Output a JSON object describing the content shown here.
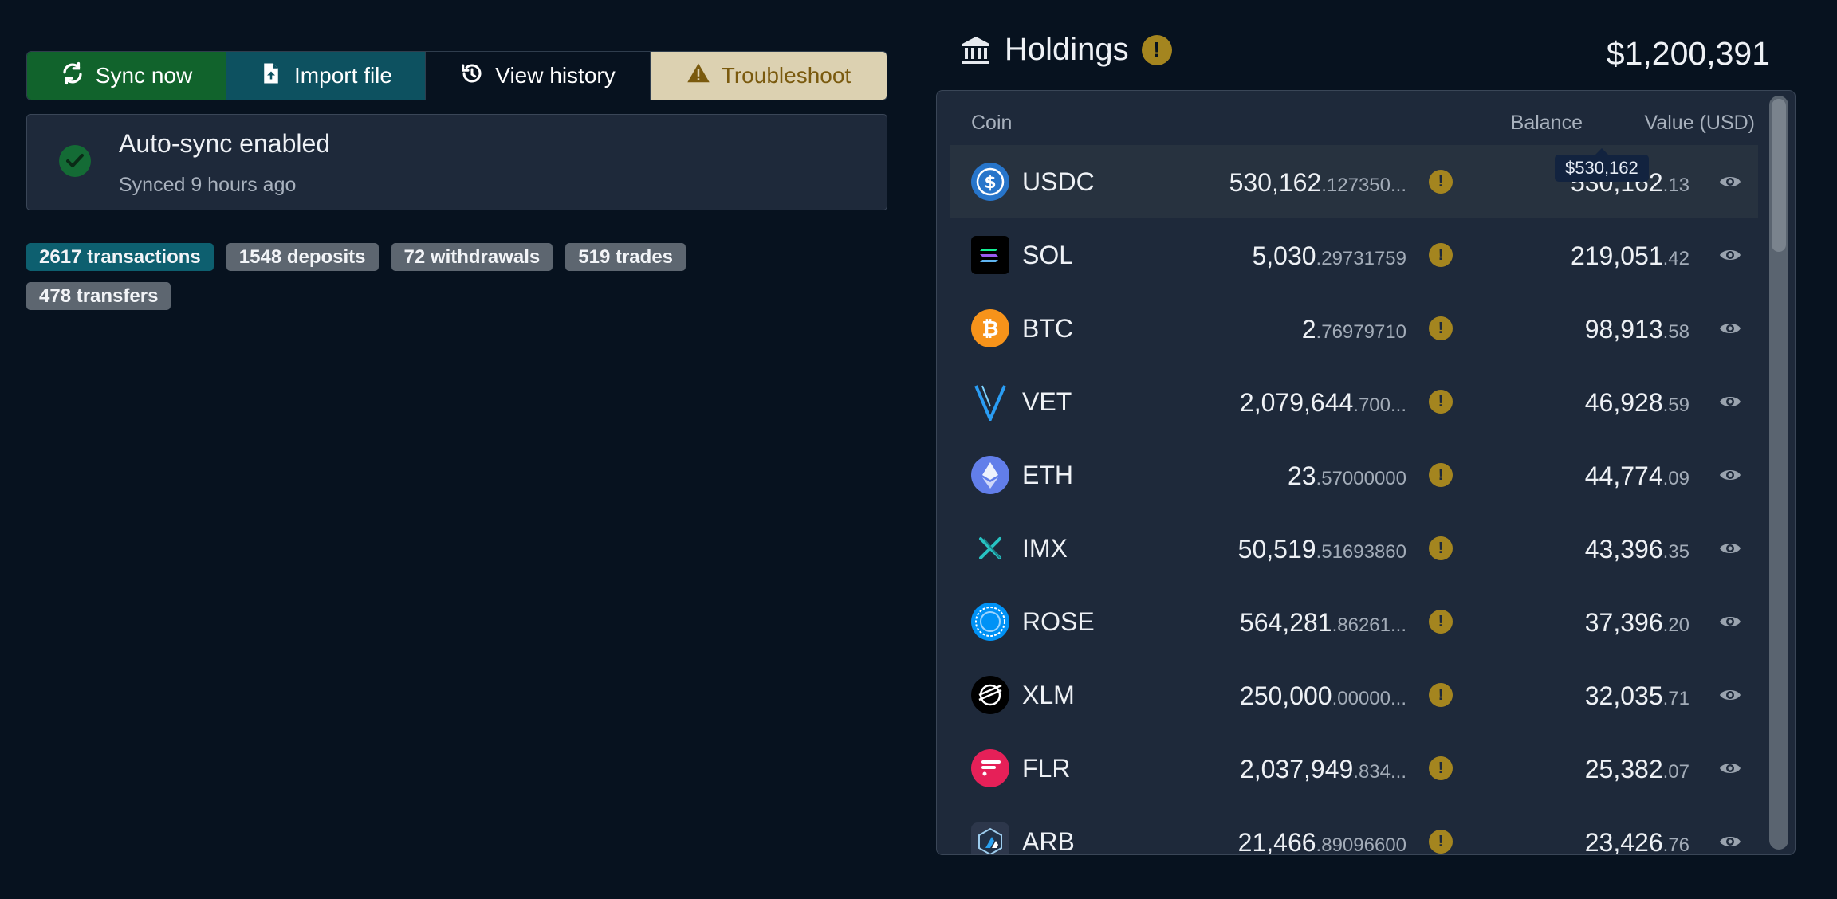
{
  "toolbar": {
    "sync_label": "Sync now",
    "import_label": "Import file",
    "history_label": "View history",
    "troubleshoot_label": "Troubleshoot"
  },
  "status": {
    "title": "Auto-sync enabled",
    "subtitle": "Synced 9 hours ago"
  },
  "badges": [
    {
      "label": "2617 transactions",
      "color": "#0d5f6f"
    },
    {
      "label": "1548 deposits",
      "color": "#5d6670"
    },
    {
      "label": "72 withdrawals",
      "color": "#5d6670"
    },
    {
      "label": "519 trades",
      "color": "#5d6670"
    },
    {
      "label": "478 transfers",
      "color": "#5d6670"
    }
  ],
  "holdings": {
    "title": "Holdings",
    "warning_glyph": "!",
    "total": "$1,200,391",
    "columns": {
      "coin": "Coin",
      "balance": "Balance",
      "value": "Value (USD)"
    },
    "tooltip": "$530,162",
    "rows": [
      {
        "symbol": "USDC",
        "icon": "usdc-icon",
        "bal_int": "530,162",
        "bal_dec": ".127350...",
        "val_int": "530,162",
        "val_dec": ".13",
        "highlight": true
      },
      {
        "symbol": "SOL",
        "icon": "sol-icon",
        "bal_int": "5,030",
        "bal_dec": ".29731759",
        "val_int": "219,051",
        "val_dec": ".42"
      },
      {
        "symbol": "BTC",
        "icon": "btc-icon",
        "bal_int": "2",
        "bal_dec": ".76979710",
        "val_int": "98,913",
        "val_dec": ".58"
      },
      {
        "symbol": "VET",
        "icon": "vet-icon",
        "bal_int": "2,079,644",
        "bal_dec": ".700...",
        "val_int": "46,928",
        "val_dec": ".59"
      },
      {
        "symbol": "ETH",
        "icon": "eth-icon",
        "bal_int": "23",
        "bal_dec": ".57000000",
        "val_int": "44,774",
        "val_dec": ".09"
      },
      {
        "symbol": "IMX",
        "icon": "imx-icon",
        "bal_int": "50,519",
        "bal_dec": ".51693860",
        "val_int": "43,396",
        "val_dec": ".35"
      },
      {
        "symbol": "ROSE",
        "icon": "rose-icon",
        "bal_int": "564,281",
        "bal_dec": ".86261...",
        "val_int": "37,396",
        "val_dec": ".20"
      },
      {
        "symbol": "XLM",
        "icon": "xlm-icon",
        "bal_int": "250,000",
        "bal_dec": ".00000...",
        "val_int": "32,035",
        "val_dec": ".71"
      },
      {
        "symbol": "FLR",
        "icon": "flr-icon",
        "bal_int": "2,037,949",
        "bal_dec": ".834...",
        "val_int": "25,382",
        "val_dec": ".07"
      },
      {
        "symbol": "ARB",
        "icon": "arb-icon",
        "bal_int": "21,466",
        "bal_dec": ".89096600",
        "val_int": "23,426",
        "val_dec": ".76"
      }
    ]
  },
  "colors": {
    "background": "#07121f",
    "sync": "#11632c",
    "import": "#0d5160",
    "troubleshoot_bg": "#dcd1b1",
    "troubleshoot_text": "#7a5a0e",
    "warning": "#a4851f",
    "card": "#1e293a"
  }
}
